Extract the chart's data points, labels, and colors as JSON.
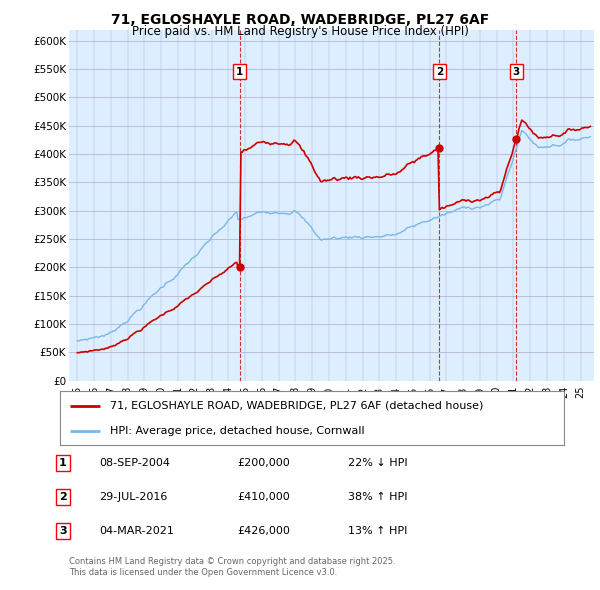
{
  "title": "71, EGLOSHAYLE ROAD, WADEBRIDGE, PL27 6AF",
  "subtitle": "Price paid vs. HM Land Registry's House Price Index (HPI)",
  "legend_line1": "71, EGLOSHAYLE ROAD, WADEBRIDGE, PL27 6AF (detached house)",
  "legend_line2": "HPI: Average price, detached house, Cornwall",
  "transactions": [
    {
      "num": 1,
      "date": "08-SEP-2004",
      "year": 2004.67,
      "price": 200000,
      "pct": "22%",
      "dir": "↓"
    },
    {
      "num": 2,
      "date": "29-JUL-2016",
      "year": 2016.58,
      "price": 410000,
      "pct": "38%",
      "dir": "↑"
    },
    {
      "num": 3,
      "date": "04-MAR-2021",
      "year": 2021.17,
      "price": 426000,
      "pct": "13%",
      "dir": "↑"
    }
  ],
  "footer1": "Contains HM Land Registry data © Crown copyright and database right 2025.",
  "footer2": "This data is licensed under the Open Government Licence v3.0.",
  "hpi_color": "#7ab8e8",
  "price_color": "#cc0000",
  "dashed_line_color": "#cc0000",
  "chart_bg_color": "#ddeeff",
  "background_color": "#ffffff",
  "ylim_min": 0,
  "ylim_max": 620000,
  "ytick_step": 50000,
  "xmin": 1994.5,
  "xmax": 2025.8
}
